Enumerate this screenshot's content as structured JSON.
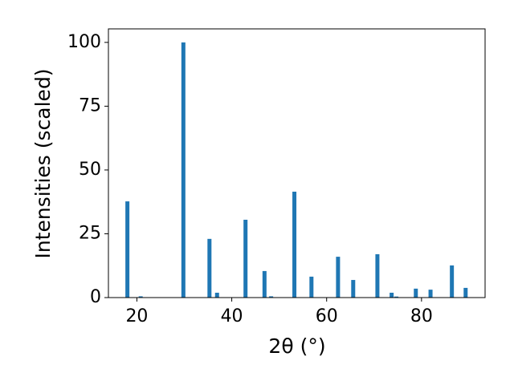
{
  "chart_data": {
    "type": "bar",
    "x_label": "2θ (°)",
    "y_label": "Intensities (scaled)",
    "x": [
      18.0,
      20.8,
      29.8,
      35.3,
      36.9,
      42.9,
      46.9,
      48.3,
      53.2,
      56.8,
      62.4,
      65.6,
      70.7,
      73.7,
      74.7,
      78.8,
      81.9,
      86.4,
      89.3
    ],
    "values": [
      37.7,
      0.5,
      100,
      23.0,
      1.9,
      30.5,
      10.4,
      0.5,
      41.5,
      8.2,
      16.0,
      6.9,
      17.0,
      1.9,
      0.4,
      3.5,
      3.1,
      12.6,
      3.8
    ],
    "color": "#1f77b4",
    "xlim": [
      14,
      93.4
    ],
    "xticks": [
      20,
      40,
      60,
      80
    ],
    "ylim": [
      0,
      105.3
    ],
    "yticks": [
      0,
      25,
      50,
      75,
      100
    ],
    "grid": false
  }
}
